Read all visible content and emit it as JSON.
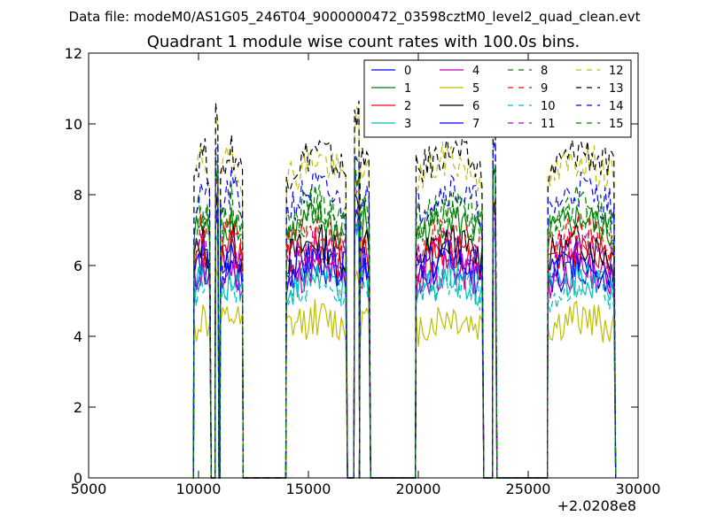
{
  "header": {
    "file_line": "Data file: modeM0/AS1G05_246T04_9000000472_03598cztM0_level2_quad_clean.evt"
  },
  "chart_data": {
    "type": "line",
    "title": "Quadrant 1 module wise count rates with 100.0s bins.",
    "xlabel": "",
    "ylabel": "",
    "x_offset_label": "+2.0208e8",
    "xlim": [
      5000,
      30000
    ],
    "ylim": [
      0,
      12
    ],
    "x_ticks": [
      5000,
      10000,
      15000,
      20000,
      25000,
      30000
    ],
    "x_tick_labels": [
      "5000",
      "10000",
      "15000",
      "20000",
      "25000",
      "30000"
    ],
    "y_ticks": [
      0,
      2,
      4,
      6,
      8,
      10,
      12
    ],
    "y_tick_labels": [
      "0",
      "2",
      "4",
      "6",
      "8",
      "10",
      "12"
    ],
    "grid": false,
    "legend_position": "top-right",
    "legend_columns": 4,
    "series": [
      {
        "name": "0",
        "color": "#0000ff",
        "style": "solid",
        "base": 5.6
      },
      {
        "name": "1",
        "color": "#008000",
        "style": "solid",
        "base": 6.8
      },
      {
        "name": "2",
        "color": "#ff0000",
        "style": "solid",
        "base": 6.0
      },
      {
        "name": "3",
        "color": "#00bfbf",
        "style": "solid",
        "base": 5.3
      },
      {
        "name": "4",
        "color": "#bf00bf",
        "style": "solid",
        "base": 5.5
      },
      {
        "name": "5",
        "color": "#bfbf00",
        "style": "solid",
        "base": 4.2
      },
      {
        "name": "6",
        "color": "#000000",
        "style": "solid",
        "base": 6.2
      },
      {
        "name": "7",
        "color": "#0000ff",
        "style": "solid",
        "base": 5.8
      },
      {
        "name": "8",
        "color": "#008000",
        "style": "dashed",
        "base": 7.2
      },
      {
        "name": "9",
        "color": "#ff0000",
        "style": "dashed",
        "base": 6.5
      },
      {
        "name": "10",
        "color": "#00bfbf",
        "style": "dashed",
        "base": 5.2
      },
      {
        "name": "11",
        "color": "#bf00bf",
        "style": "dashed",
        "base": 6.1
      },
      {
        "name": "12",
        "color": "#bfbf00",
        "style": "dashed",
        "base": 8.4
      },
      {
        "name": "13",
        "color": "#000000",
        "style": "dashed",
        "base": 8.6
      },
      {
        "name": "14",
        "color": "#0000ff",
        "style": "dashed",
        "base": 7.6
      },
      {
        "name": "15",
        "color": "#008000",
        "style": "dashed",
        "base": 7.0
      }
    ],
    "active_intervals": [
      [
        9800,
        10550
      ],
      [
        10780,
        10900
      ],
      [
        11000,
        12000
      ],
      [
        14000,
        16750
      ],
      [
        17100,
        17300
      ],
      [
        17350,
        17800
      ],
      [
        19900,
        22950
      ],
      [
        23400,
        23550
      ],
      [
        25900,
        28950
      ]
    ],
    "spike_points": [
      {
        "x": 10850,
        "y": 9.2
      },
      {
        "x": 16000,
        "y": 9.8
      },
      {
        "x": 17150,
        "y": 8.8
      },
      {
        "x": 22300,
        "y": 9.8
      },
      {
        "x": 23450,
        "y": 8.8
      },
      {
        "x": 28600,
        "y": 9.4
      }
    ]
  }
}
